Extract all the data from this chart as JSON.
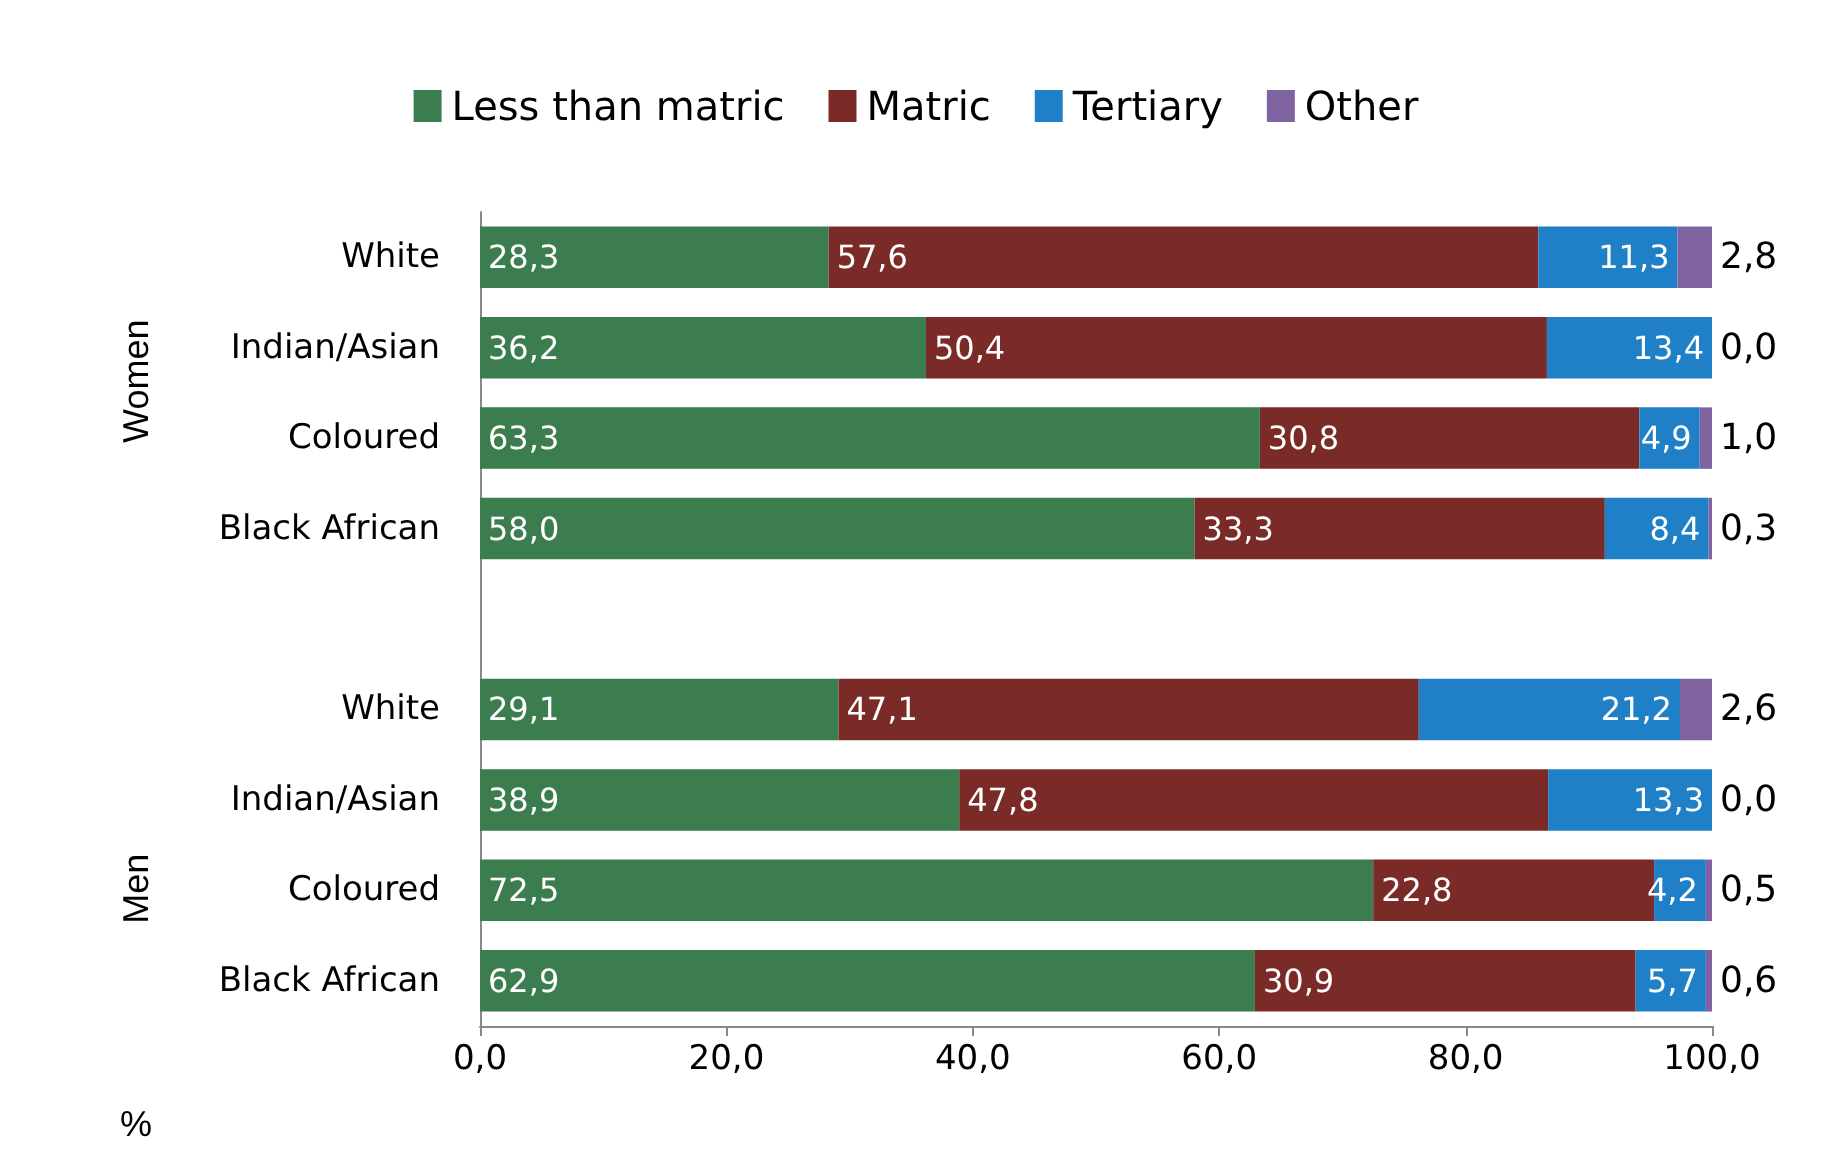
{
  "chart_data": {
    "type": "bar",
    "orientation": "horizontal",
    "stacked": true,
    "categories": [
      "White",
      "Indian/Asian",
      "Coloured",
      "Black African",
      null,
      "White",
      "Indian/Asian",
      "Coloured",
      "Black African"
    ],
    "series": [
      {
        "name": "Less than matric",
        "color": "#3b7d4e",
        "values": [
          28.3,
          36.2,
          63.3,
          58.0,
          null,
          29.1,
          38.9,
          72.5,
          62.9
        ],
        "value_labels": [
          "28,3",
          "36,2",
          "63,3",
          "58,0",
          null,
          "29,1",
          "38,9",
          "72,5",
          "62,9"
        ]
      },
      {
        "name": "Matric",
        "color": "#7a2b27",
        "values": [
          57.6,
          50.4,
          30.8,
          33.3,
          null,
          47.1,
          47.8,
          22.8,
          30.9
        ],
        "value_labels": [
          "57,6",
          "50,4",
          "30,8",
          "33,3",
          null,
          "47,1",
          "47,8",
          "22,8",
          "30,9"
        ]
      },
      {
        "name": "Tertiary",
        "color": "#1f80c8",
        "values": [
          11.3,
          13.4,
          4.9,
          8.4,
          null,
          21.2,
          13.3,
          4.2,
          5.7
        ],
        "value_labels": [
          "11,3",
          "13,4",
          "4,9",
          "8,4",
          null,
          "21,2",
          "13,3",
          "4,2",
          "5,7"
        ]
      },
      {
        "name": "Other",
        "color": "#8064a2",
        "values": [
          2.8,
          0.0,
          1.0,
          0.3,
          null,
          2.6,
          0.0,
          0.5,
          0.6
        ],
        "value_labels": [
          "2,8",
          "0,0",
          "1,0",
          "0,3",
          null,
          "2,6",
          "0,0",
          "0,5",
          "0,6"
        ]
      }
    ],
    "xlim": [
      0,
      100
    ],
    "xticks": [
      {
        "value": 0,
        "label": "0,0"
      },
      {
        "value": 20,
        "label": "20,0"
      },
      {
        "value": 40,
        "label": "40,0"
      },
      {
        "value": 60,
        "label": "60,0"
      },
      {
        "value": 80,
        "label": "80,0"
      },
      {
        "value": 100,
        "label": "100,0"
      }
    ],
    "xlabel": "%",
    "annotations": [
      "Women",
      "Men"
    ],
    "legend": "top",
    "grid": false
  }
}
